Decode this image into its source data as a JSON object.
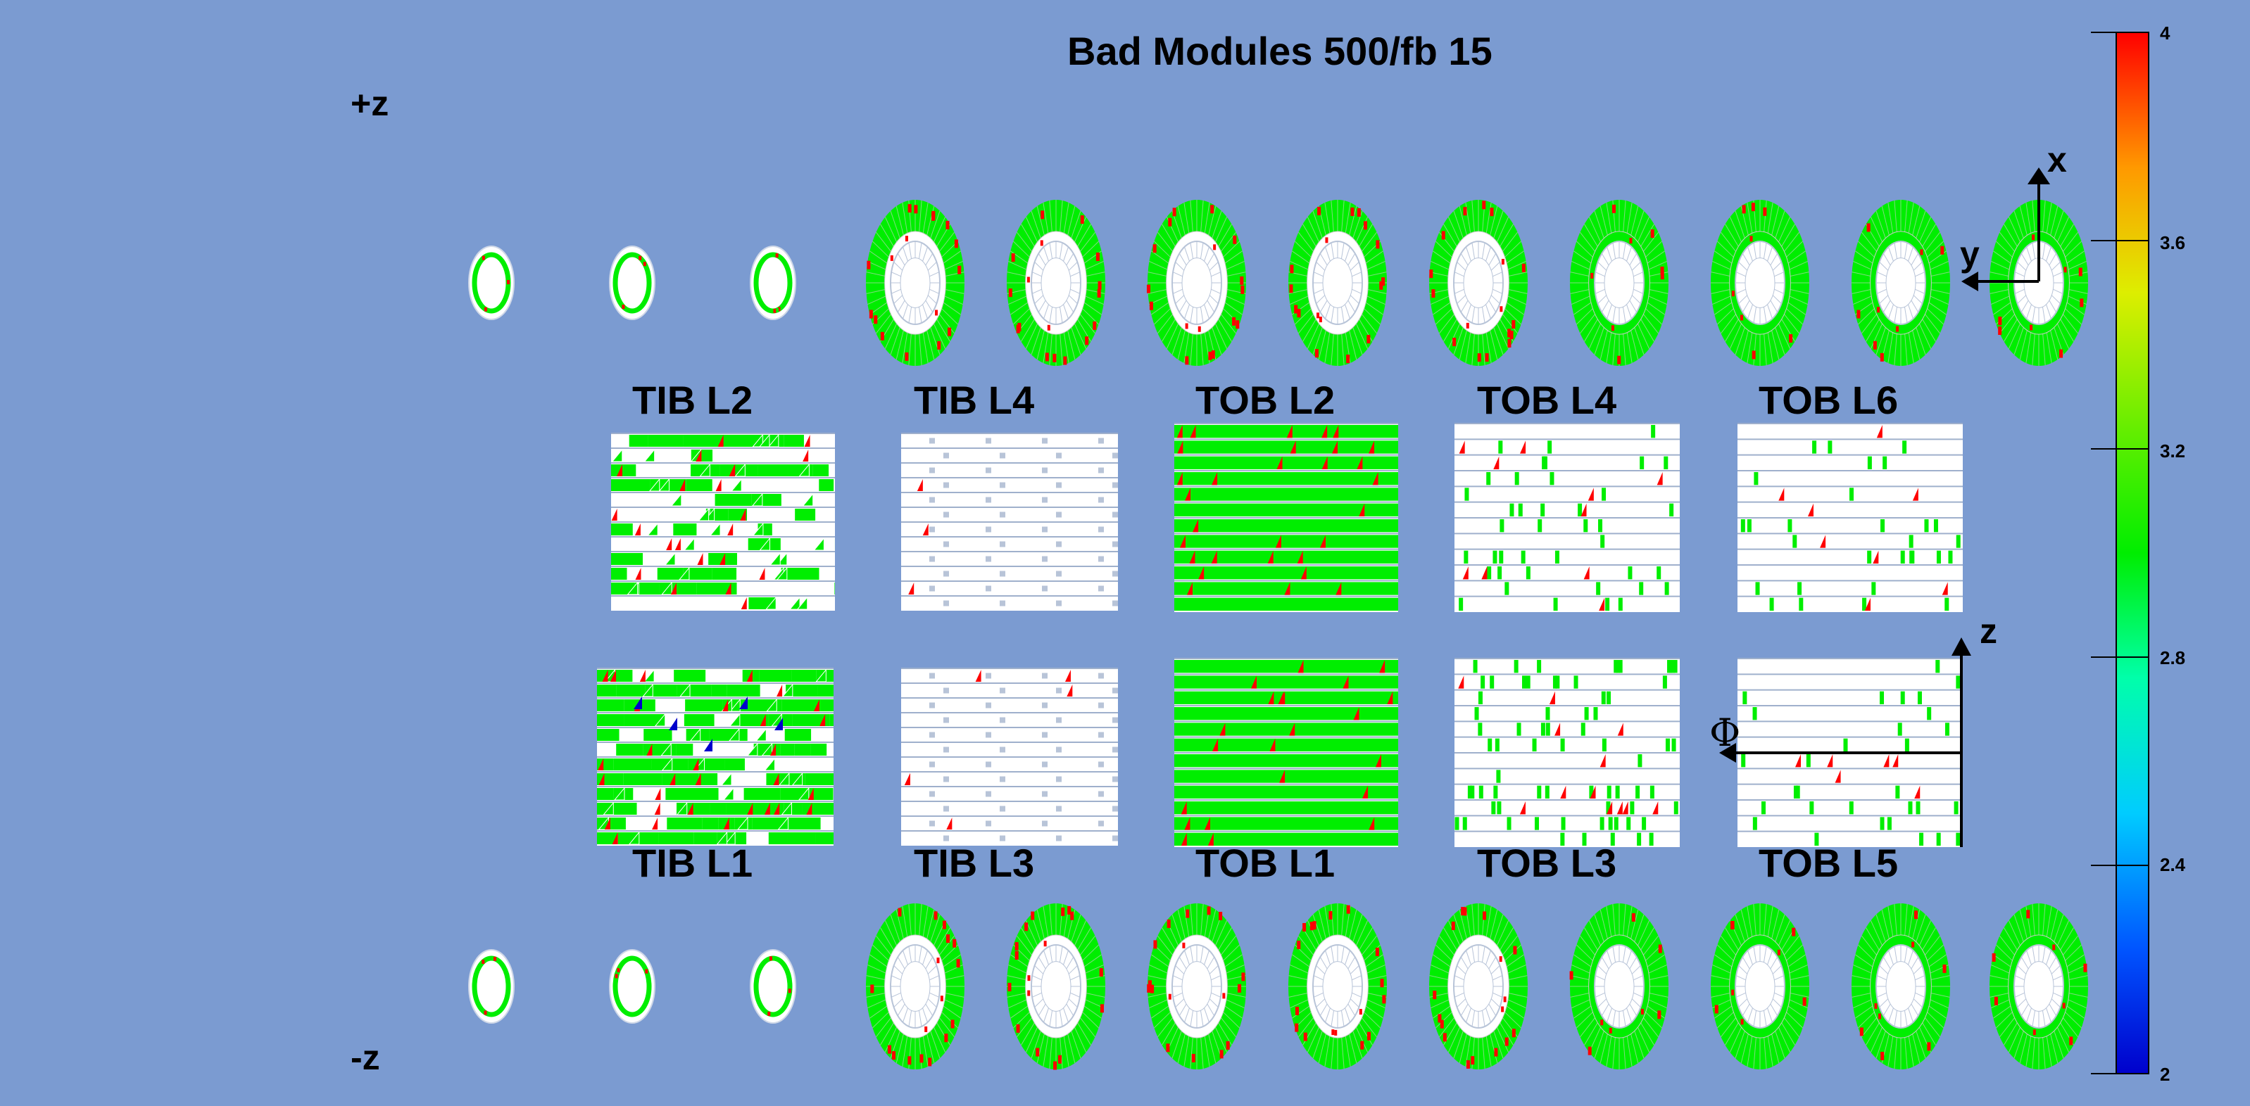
{
  "title": "Bad Modules 500/fb 15",
  "z_labels": {
    "plus": "+z",
    "minus": "-z"
  },
  "barrel_panels_top": [
    "TIB L2",
    "TIB L4",
    "TOB L2",
    "TOB L4",
    "TOB L6"
  ],
  "barrel_panels_bottom": [
    "TIB L1",
    "TIB L3",
    "TOB L1",
    "TOB L3",
    "TOB L5"
  ],
  "axes": {
    "x": "x",
    "y": "y",
    "z": "z",
    "phi": "Φ"
  },
  "color_scale": {
    "min": 2,
    "max": 4,
    "ticks": [
      "4",
      "3.6",
      "3.2",
      "2.8",
      "2.4",
      "2"
    ]
  },
  "colors": {
    "background": "#7b9bd1",
    "good": "#00ee00",
    "empty": "#ffffff",
    "bad": "#ff0000",
    "blue": "#0000cc"
  },
  "disk_row_plus_count": 12,
  "disk_row_minus_count": 12
}
